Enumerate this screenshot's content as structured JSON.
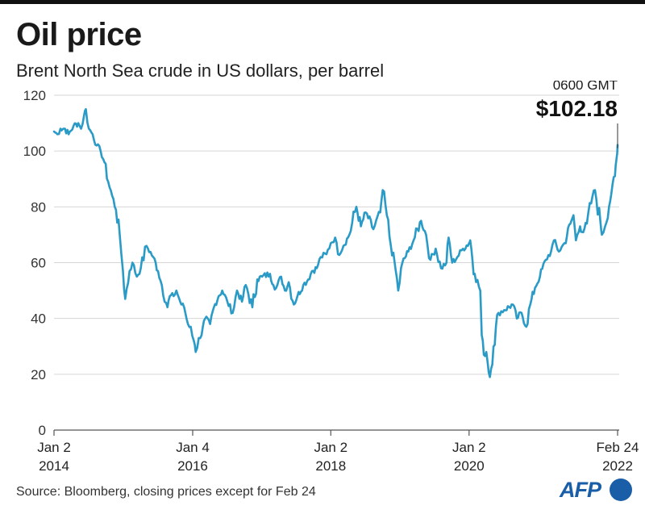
{
  "title": "Oil price",
  "subtitle": "Brent North Sea crude in US dollars, per barrel",
  "source": "Source: Bloomberg, closing prices except for Feb 24",
  "logo": "AFP",
  "colors": {
    "line": "#2a9ac7",
    "grid": "#d6d6d6",
    "text": "#1a1a1a",
    "logo": "#1a5ea8"
  },
  "chart_data": {
    "type": "line",
    "title": "Oil price",
    "subtitle": "Brent North Sea crude in US dollars, per barrel",
    "ylim": [
      0,
      120
    ],
    "yticks": [
      0,
      20,
      40,
      60,
      80,
      100,
      120
    ],
    "xlim": [
      "2014-01-02",
      "2022-02-24"
    ],
    "xticks": [
      {
        "date": "2014-01-02",
        "line1": "Jan 2",
        "line2": "2014"
      },
      {
        "date": "2016-01-04",
        "line1": "Jan 4",
        "line2": "2016"
      },
      {
        "date": "2018-01-02",
        "line1": "Jan 2",
        "line2": "2018"
      },
      {
        "date": "2020-01-02",
        "line1": "Jan 2",
        "line2": "2020"
      },
      {
        "date": "2022-02-24",
        "line1": "Feb 24",
        "line2": "2022"
      }
    ],
    "grid": true,
    "annotation": {
      "time": "0600 GMT",
      "value": "$102.18",
      "date": "2022-02-24"
    },
    "series": [
      {
        "x": [
          "2014-01-02",
          "2014-01-20",
          "2014-02-05",
          "2014-03-01",
          "2014-03-20",
          "2014-04-15",
          "2014-05-10",
          "2014-05-25",
          "2014-06-10",
          "2014-06-19",
          "2014-07-05",
          "2014-07-25",
          "2014-08-15",
          "2014-09-05",
          "2014-09-25",
          "2014-10-15",
          "2014-11-05",
          "2014-11-25",
          "2014-12-15",
          "2015-01-01",
          "2015-01-13",
          "2015-02-05",
          "2015-02-20",
          "2015-03-15",
          "2015-04-05",
          "2015-05-05",
          "2015-06-10",
          "2015-07-05",
          "2015-07-25",
          "2015-08-24",
          "2015-09-05",
          "2015-09-25",
          "2015-10-10",
          "2015-11-05",
          "2015-11-20",
          "2015-12-10",
          "2015-12-25",
          "2016-01-10",
          "2016-01-20",
          "2016-02-05",
          "2016-02-20",
          "2016-03-10",
          "2016-04-05",
          "2016-04-25",
          "2016-05-20",
          "2016-06-08",
          "2016-07-05",
          "2016-08-02",
          "2016-08-25",
          "2016-09-20",
          "2016-10-10",
          "2016-11-14",
          "2016-12-10",
          "2017-01-05",
          "2017-02-15",
          "2017-03-05",
          "2017-03-20",
          "2017-04-15",
          "2017-05-05",
          "2017-05-25",
          "2017-06-21",
          "2017-07-10",
          "2017-08-10",
          "2017-09-05",
          "2017-09-25",
          "2017-10-20",
          "2017-11-10",
          "2017-12-10",
          "2018-01-02",
          "2018-01-25",
          "2018-02-09",
          "2018-03-10",
          "2018-04-10",
          "2018-05-17",
          "2018-06-10",
          "2018-07-05",
          "2018-08-15",
          "2018-09-20",
          "2018-10-03",
          "2018-10-25",
          "2018-11-15",
          "2018-12-05",
          "2018-12-24",
          "2019-01-15",
          "2019-02-15",
          "2019-03-15",
          "2019-04-24",
          "2019-05-20",
          "2019-06-12",
          "2019-07-10",
          "2019-08-07",
          "2019-09-05",
          "2019-09-16",
          "2019-10-05",
          "2019-11-01",
          "2019-12-01",
          "2020-01-02",
          "2020-01-08",
          "2020-02-01",
          "2020-03-01",
          "2020-03-09",
          "2020-03-20",
          "2020-04-02",
          "2020-04-21",
          "2020-05-10",
          "2020-06-05",
          "2020-07-05",
          "2020-08-20",
          "2020-09-10",
          "2020-10-05",
          "2020-10-30",
          "2020-11-20",
          "2020-12-15",
          "2021-01-10",
          "2021-02-10",
          "2021-03-10",
          "2021-03-25",
          "2021-04-20",
          "2021-05-20",
          "2021-06-20",
          "2021-07-06",
          "2021-07-19",
          "2021-08-10",
          "2021-08-20",
          "2021-09-15",
          "2021-10-15",
          "2021-10-28",
          "2021-11-26",
          "2021-12-03",
          "2021-12-20",
          "2022-01-10",
          "2022-01-28",
          "2022-02-10",
          "2022-02-18",
          "2022-02-22",
          "2022-02-24"
        ],
        "values": [
          107,
          106,
          108,
          108,
          106,
          109,
          110,
          108,
          113,
          115,
          108,
          106,
          102,
          100,
          96,
          89,
          84,
          79,
          70,
          57,
          47,
          57,
          60,
          55,
          58,
          66,
          62,
          57,
          52,
          44,
          48,
          48,
          50,
          45,
          44,
          38,
          37,
          32,
          28,
          33,
          34,
          40,
          38,
          44,
          48,
          50,
          46,
          42,
          50,
          46,
          52,
          44,
          54,
          55,
          56,
          52,
          51,
          55,
          50,
          53,
          45,
          48,
          52,
          54,
          57,
          58,
          62,
          63,
          67,
          69,
          63,
          66,
          70,
          80,
          73,
          78,
          72,
          78,
          86,
          77,
          66,
          60,
          50,
          60,
          64,
          68,
          75,
          70,
          61,
          65,
          58,
          60,
          69,
          60,
          62,
          65,
          67,
          68,
          56,
          50,
          34,
          27,
          28,
          19,
          30,
          42,
          43,
          45,
          40,
          42,
          37,
          45,
          51,
          55,
          61,
          64,
          68,
          64,
          67,
          74,
          77,
          68,
          73,
          71,
          74,
          84,
          86,
          74,
          70,
          73,
          80,
          88,
          91,
          97,
          99,
          102.18
        ]
      }
    ]
  }
}
